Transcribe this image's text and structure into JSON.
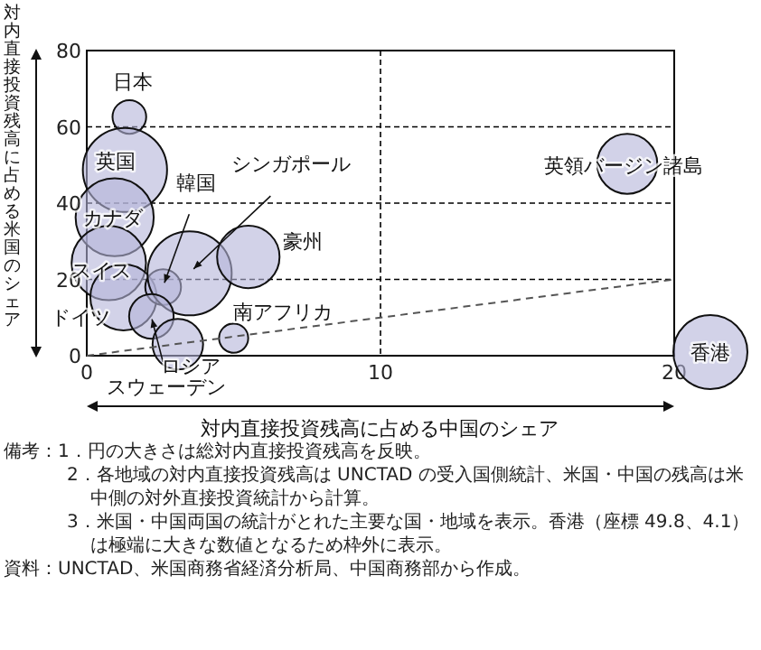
{
  "chart_data": {
    "type": "bubble",
    "xlabel": "対内直接投資残高に占める中国のシェア",
    "ylabel": "対内直接投資残高に占める米国のシェア",
    "xlim": [
      0,
      20
    ],
    "ylim": [
      0,
      80
    ],
    "xticks": [
      0,
      10,
      20
    ],
    "yticks": [
      0,
      20,
      40,
      60,
      80
    ],
    "grid": true,
    "series": [
      {
        "type": "bubble",
        "color": "#b4b4d8",
        "x": [
          1.45,
          1.3,
          0.95,
          0.75,
          1.25,
          2.6,
          3.5,
          5.5,
          2.2,
          3.1,
          5.0,
          18.4
        ],
        "values": [
          62.6,
          48.7,
          36.3,
          24.3,
          15.3,
          18,
          21.6,
          25.9,
          10.3,
          3.0,
          4.6,
          50.3
        ],
        "sizes": [
          0.16,
          1,
          0.86,
          0.78,
          0.62,
          0.18,
          1,
          0.55,
          0.28,
          0.36,
          0.12,
          0.51
        ]
      },
      {
        "type": "line",
        "color": "#555555",
        "line_style": "dashed",
        "x": [
          0,
          20
        ],
        "values": [
          0,
          20
        ]
      }
    ],
    "annotations": [
      {
        "text": "日本",
        "x": 1.45,
        "y": 62.6
      },
      {
        "text": "英国",
        "x": 1.3,
        "y": 48.7
      },
      {
        "text": "カナダ",
        "x": 0.95,
        "y": 36.3
      },
      {
        "text": "スイス",
        "x": 0.75,
        "y": 24.3
      },
      {
        "text": "ドイツ",
        "x": 1.25,
        "y": 15.3
      },
      {
        "text": "韓国",
        "x": 2.6,
        "y": 18
      },
      {
        "text": "シンガポール",
        "x": 3.5,
        "y": 21.6
      },
      {
        "text": "豪州",
        "x": 5.5,
        "y": 25.9
      },
      {
        "text": "スウェーデン",
        "x": 2.2,
        "y": 10.3
      },
      {
        "text": "ロシア",
        "x": 3.1,
        "y": 3.0
      },
      {
        "text": "南アフリカ",
        "x": 5.0,
        "y": 4.6
      },
      {
        "text": "英領バージン諸島",
        "x": 18.4,
        "y": 50.3
      },
      "香港",
      "備考：1．円の大きさは総対内直接投資残高を反映。",
      "2．各地域の対内直接投資残高は UNCTAD の受入国側統計、米国・中国の残高は米中側の対外直接投資統計から計算。",
      "3．米国・中国両国の統計がとれた主要な国・地域を表示。香港（座標 49.8、4.1）は極端に大きな数値となるため枠外に表示。",
      "資料：UNCTAD、米国商務省経済分析局、中国商務部から作成。"
    ]
  }
}
